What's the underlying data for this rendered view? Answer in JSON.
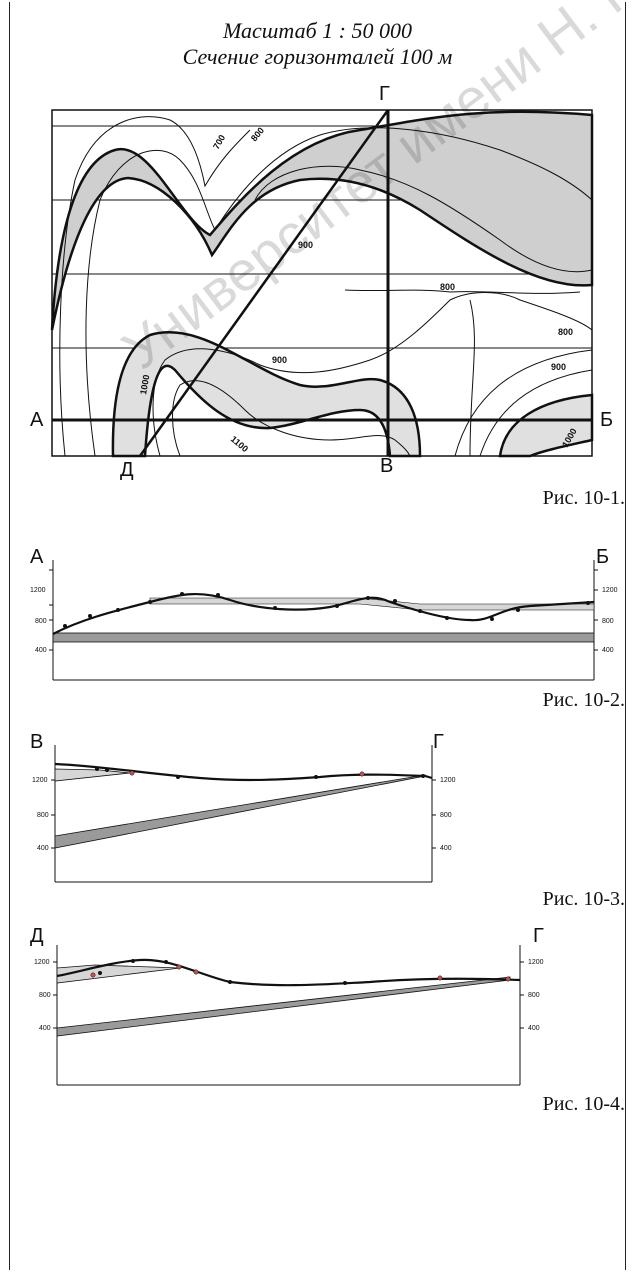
{
  "header": {
    "scale": "Масштаб 1 : 50 000",
    "contour_interval": "Сечение горизонталей 100 м"
  },
  "map": {
    "point_a": "А",
    "point_b": "Б",
    "point_v": "В",
    "point_g": "Г",
    "point_d": "Д",
    "contour_labels": [
      "700",
      "800",
      "900",
      "800",
      "800",
      "900",
      "900",
      "1000",
      "1100",
      "1000"
    ],
    "caption": "Рис. 10-1."
  },
  "profiles": [
    {
      "left": "А",
      "right": "Б",
      "ticks": [
        "1200",
        "800",
        "400"
      ],
      "caption": "Рис. 10-2."
    },
    {
      "left": "В",
      "right": "Г",
      "ticks": [
        "1200",
        "800",
        "400"
      ],
      "caption": "Рис. 10-3."
    },
    {
      "left": "Д",
      "right": "Г",
      "ticks": [
        "1200",
        "800",
        "400"
      ],
      "caption": "Рис. 10-4."
    }
  ],
  "watermark": "Университет имени Н. Г. Чернышевского",
  "colors": {
    "layer_light": "#d6d6d6",
    "layer_dark": "#9a9a9a",
    "line": "#111111"
  }
}
